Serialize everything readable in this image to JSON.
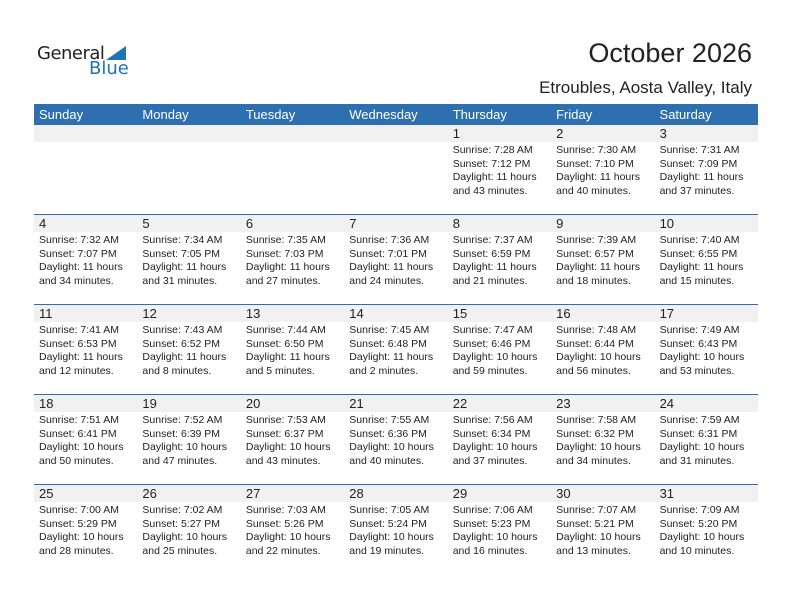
{
  "logo": {
    "general": "General",
    "blue": "Blue"
  },
  "title": "October 2026",
  "location": "Etroubles, Aosta Valley, Italy",
  "colors": {
    "accent": "#2e6fb0",
    "band": "#f1f1f1"
  },
  "weekdays": [
    "Sunday",
    "Monday",
    "Tuesday",
    "Wednesday",
    "Thursday",
    "Friday",
    "Saturday"
  ],
  "weeks": [
    [
      null,
      null,
      null,
      null,
      {
        "day": "1",
        "sunrise": "Sunrise: 7:28 AM",
        "sunset": "Sunset: 7:12 PM",
        "daylight": "Daylight: 11 hours",
        "minutes": "and 43 minutes."
      },
      {
        "day": "2",
        "sunrise": "Sunrise: 7:30 AM",
        "sunset": "Sunset: 7:10 PM",
        "daylight": "Daylight: 11 hours",
        "minutes": "and 40 minutes."
      },
      {
        "day": "3",
        "sunrise": "Sunrise: 7:31 AM",
        "sunset": "Sunset: 7:09 PM",
        "daylight": "Daylight: 11 hours",
        "minutes": "and 37 minutes."
      }
    ],
    [
      {
        "day": "4",
        "sunrise": "Sunrise: 7:32 AM",
        "sunset": "Sunset: 7:07 PM",
        "daylight": "Daylight: 11 hours",
        "minutes": "and 34 minutes."
      },
      {
        "day": "5",
        "sunrise": "Sunrise: 7:34 AM",
        "sunset": "Sunset: 7:05 PM",
        "daylight": "Daylight: 11 hours",
        "minutes": "and 31 minutes."
      },
      {
        "day": "6",
        "sunrise": "Sunrise: 7:35 AM",
        "sunset": "Sunset: 7:03 PM",
        "daylight": "Daylight: 11 hours",
        "minutes": "and 27 minutes."
      },
      {
        "day": "7",
        "sunrise": "Sunrise: 7:36 AM",
        "sunset": "Sunset: 7:01 PM",
        "daylight": "Daylight: 11 hours",
        "minutes": "and 24 minutes."
      },
      {
        "day": "8",
        "sunrise": "Sunrise: 7:37 AM",
        "sunset": "Sunset: 6:59 PM",
        "daylight": "Daylight: 11 hours",
        "minutes": "and 21 minutes."
      },
      {
        "day": "9",
        "sunrise": "Sunrise: 7:39 AM",
        "sunset": "Sunset: 6:57 PM",
        "daylight": "Daylight: 11 hours",
        "minutes": "and 18 minutes."
      },
      {
        "day": "10",
        "sunrise": "Sunrise: 7:40 AM",
        "sunset": "Sunset: 6:55 PM",
        "daylight": "Daylight: 11 hours",
        "minutes": "and 15 minutes."
      }
    ],
    [
      {
        "day": "11",
        "sunrise": "Sunrise: 7:41 AM",
        "sunset": "Sunset: 6:53 PM",
        "daylight": "Daylight: 11 hours",
        "minutes": "and 12 minutes."
      },
      {
        "day": "12",
        "sunrise": "Sunrise: 7:43 AM",
        "sunset": "Sunset: 6:52 PM",
        "daylight": "Daylight: 11 hours",
        "minutes": "and 8 minutes."
      },
      {
        "day": "13",
        "sunrise": "Sunrise: 7:44 AM",
        "sunset": "Sunset: 6:50 PM",
        "daylight": "Daylight: 11 hours",
        "minutes": "and 5 minutes."
      },
      {
        "day": "14",
        "sunrise": "Sunrise: 7:45 AM",
        "sunset": "Sunset: 6:48 PM",
        "daylight": "Daylight: 11 hours",
        "minutes": "and 2 minutes."
      },
      {
        "day": "15",
        "sunrise": "Sunrise: 7:47 AM",
        "sunset": "Sunset: 6:46 PM",
        "daylight": "Daylight: 10 hours",
        "minutes": "and 59 minutes."
      },
      {
        "day": "16",
        "sunrise": "Sunrise: 7:48 AM",
        "sunset": "Sunset: 6:44 PM",
        "daylight": "Daylight: 10 hours",
        "minutes": "and 56 minutes."
      },
      {
        "day": "17",
        "sunrise": "Sunrise: 7:49 AM",
        "sunset": "Sunset: 6:43 PM",
        "daylight": "Daylight: 10 hours",
        "minutes": "and 53 minutes."
      }
    ],
    [
      {
        "day": "18",
        "sunrise": "Sunrise: 7:51 AM",
        "sunset": "Sunset: 6:41 PM",
        "daylight": "Daylight: 10 hours",
        "minutes": "and 50 minutes."
      },
      {
        "day": "19",
        "sunrise": "Sunrise: 7:52 AM",
        "sunset": "Sunset: 6:39 PM",
        "daylight": "Daylight: 10 hours",
        "minutes": "and 47 minutes."
      },
      {
        "day": "20",
        "sunrise": "Sunrise: 7:53 AM",
        "sunset": "Sunset: 6:37 PM",
        "daylight": "Daylight: 10 hours",
        "minutes": "and 43 minutes."
      },
      {
        "day": "21",
        "sunrise": "Sunrise: 7:55 AM",
        "sunset": "Sunset: 6:36 PM",
        "daylight": "Daylight: 10 hours",
        "minutes": "and 40 minutes."
      },
      {
        "day": "22",
        "sunrise": "Sunrise: 7:56 AM",
        "sunset": "Sunset: 6:34 PM",
        "daylight": "Daylight: 10 hours",
        "minutes": "and 37 minutes."
      },
      {
        "day": "23",
        "sunrise": "Sunrise: 7:58 AM",
        "sunset": "Sunset: 6:32 PM",
        "daylight": "Daylight: 10 hours",
        "minutes": "and 34 minutes."
      },
      {
        "day": "24",
        "sunrise": "Sunrise: 7:59 AM",
        "sunset": "Sunset: 6:31 PM",
        "daylight": "Daylight: 10 hours",
        "minutes": "and 31 minutes."
      }
    ],
    [
      {
        "day": "25",
        "sunrise": "Sunrise: 7:00 AM",
        "sunset": "Sunset: 5:29 PM",
        "daylight": "Daylight: 10 hours",
        "minutes": "and 28 minutes."
      },
      {
        "day": "26",
        "sunrise": "Sunrise: 7:02 AM",
        "sunset": "Sunset: 5:27 PM",
        "daylight": "Daylight: 10 hours",
        "minutes": "and 25 minutes."
      },
      {
        "day": "27",
        "sunrise": "Sunrise: 7:03 AM",
        "sunset": "Sunset: 5:26 PM",
        "daylight": "Daylight: 10 hours",
        "minutes": "and 22 minutes."
      },
      {
        "day": "28",
        "sunrise": "Sunrise: 7:05 AM",
        "sunset": "Sunset: 5:24 PM",
        "daylight": "Daylight: 10 hours",
        "minutes": "and 19 minutes."
      },
      {
        "day": "29",
        "sunrise": "Sunrise: 7:06 AM",
        "sunset": "Sunset: 5:23 PM",
        "daylight": "Daylight: 10 hours",
        "minutes": "and 16 minutes."
      },
      {
        "day": "30",
        "sunrise": "Sunrise: 7:07 AM",
        "sunset": "Sunset: 5:21 PM",
        "daylight": "Daylight: 10 hours",
        "minutes": "and 13 minutes."
      },
      {
        "day": "31",
        "sunrise": "Sunrise: 7:09 AM",
        "sunset": "Sunset: 5:20 PM",
        "daylight": "Daylight: 10 hours",
        "minutes": "and 10 minutes."
      }
    ]
  ]
}
